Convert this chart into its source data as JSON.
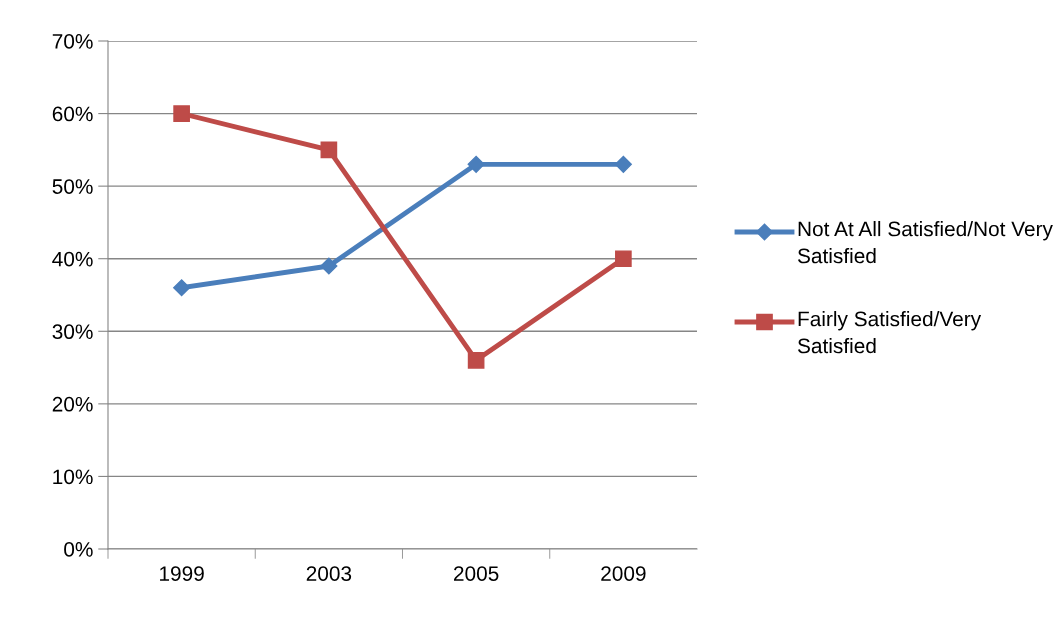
{
  "chart_data": {
    "type": "line",
    "categories": [
      "1999",
      "2003",
      "2005",
      "2009"
    ],
    "series": [
      {
        "name": "Not At All Satisfied/Not Very Satisfied",
        "color": "#4a7ebb",
        "marker": "diamond",
        "values": [
          36,
          39,
          53,
          53
        ]
      },
      {
        "name": "Fairly Satisfied/Very Satisfied",
        "color": "#be4b48",
        "marker": "square",
        "values": [
          60,
          55,
          26,
          40
        ]
      }
    ],
    "ylim": [
      0,
      70
    ],
    "yticks": [
      {
        "value": 0,
        "label": "0%"
      },
      {
        "value": 10,
        "label": "10%"
      },
      {
        "value": 20,
        "label": "20%"
      },
      {
        "value": 30,
        "label": "30%"
      },
      {
        "value": 40,
        "label": "40%"
      },
      {
        "value": 50,
        "label": "50%"
      },
      {
        "value": 60,
        "label": "60%"
      },
      {
        "value": 70,
        "label": "70%"
      }
    ],
    "grid": "y",
    "legend": "right",
    "line_style": "solid"
  }
}
